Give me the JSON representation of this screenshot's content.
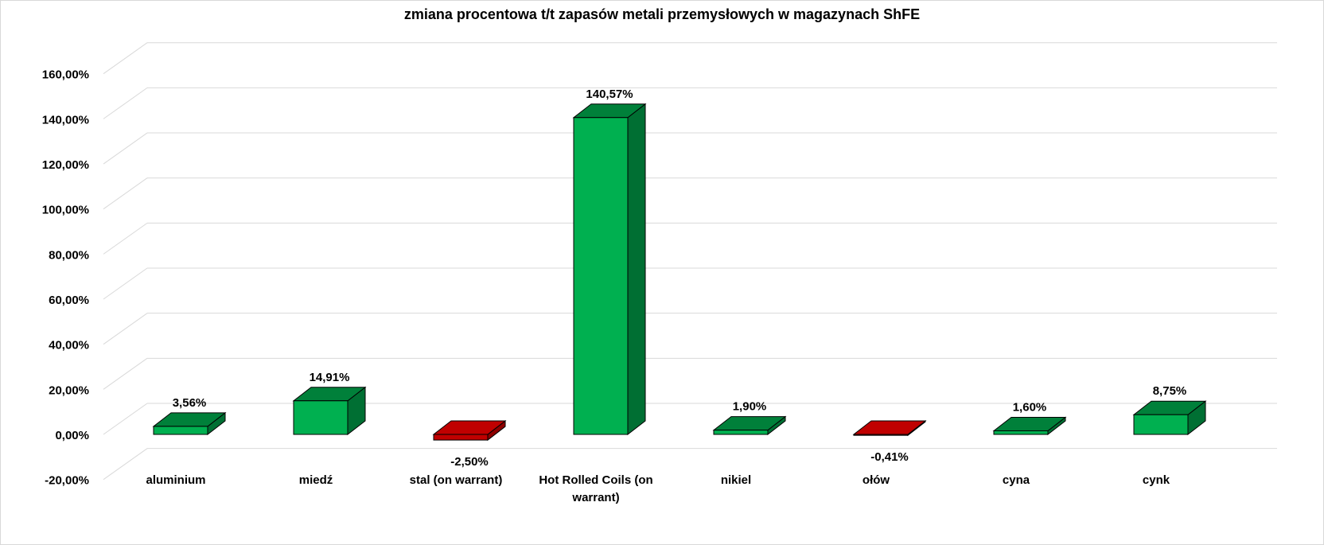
{
  "chart_data": {
    "type": "bar",
    "title": "zmiana procentowa t/t zapasów metali przemysłowych w magazynach ShFE",
    "xlabel": "",
    "ylabel": "",
    "categories": [
      "aluminium",
      "miedź",
      "stal (on warrant)",
      "Hot Rolled Coils (on warrant)",
      "nikiel",
      "ołów",
      "cyna",
      "cynk"
    ],
    "values": [
      3.56,
      14.91,
      -2.5,
      140.57,
      1.9,
      -0.41,
      1.6,
      8.75
    ],
    "data_labels": [
      "3,56%",
      "14,91%",
      "-2,50%",
      "140,57%",
      "1,90%",
      "-0,41%",
      "1,60%",
      "8,75%"
    ],
    "ylim": [
      -20,
      160
    ],
    "yticks": [
      -20,
      0,
      20,
      40,
      60,
      80,
      100,
      120,
      140,
      160
    ],
    "ytick_labels": [
      "-20,00%",
      "0,00%",
      "20,00%",
      "40,00%",
      "60,00%",
      "80,00%",
      "100,00%",
      "120,00%",
      "140,00%",
      "160,00%"
    ],
    "grid": true,
    "legend": "none",
    "colors": {
      "positive_front": "#00b050",
      "positive_top": "#00803a",
      "positive_side": "#006f33",
      "negative_front": "#c00000",
      "negative_top": "#c00000",
      "negative_side": "#8e0000",
      "gridline": "#d9d9d9",
      "edge": "#000000"
    }
  }
}
